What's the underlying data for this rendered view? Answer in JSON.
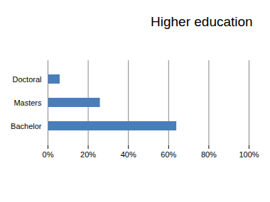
{
  "chart_data": {
    "type": "bar",
    "title": "Higher education",
    "orientation": "horizontal",
    "categories": [
      "Doctoral",
      "Masters",
      "Bachelor"
    ],
    "values": [
      6,
      26,
      64
    ],
    "color": "#4a7ebb",
    "xlim": [
      0,
      100
    ],
    "xticks": [
      {
        "value": 0,
        "label": "0%"
      },
      {
        "value": 20,
        "label": "20%"
      },
      {
        "value": 40,
        "label": "40%"
      },
      {
        "value": 60,
        "label": "60%"
      },
      {
        "value": 80,
        "label": "80%"
      },
      {
        "value": 100,
        "label": "100%"
      }
    ],
    "grid": true
  }
}
